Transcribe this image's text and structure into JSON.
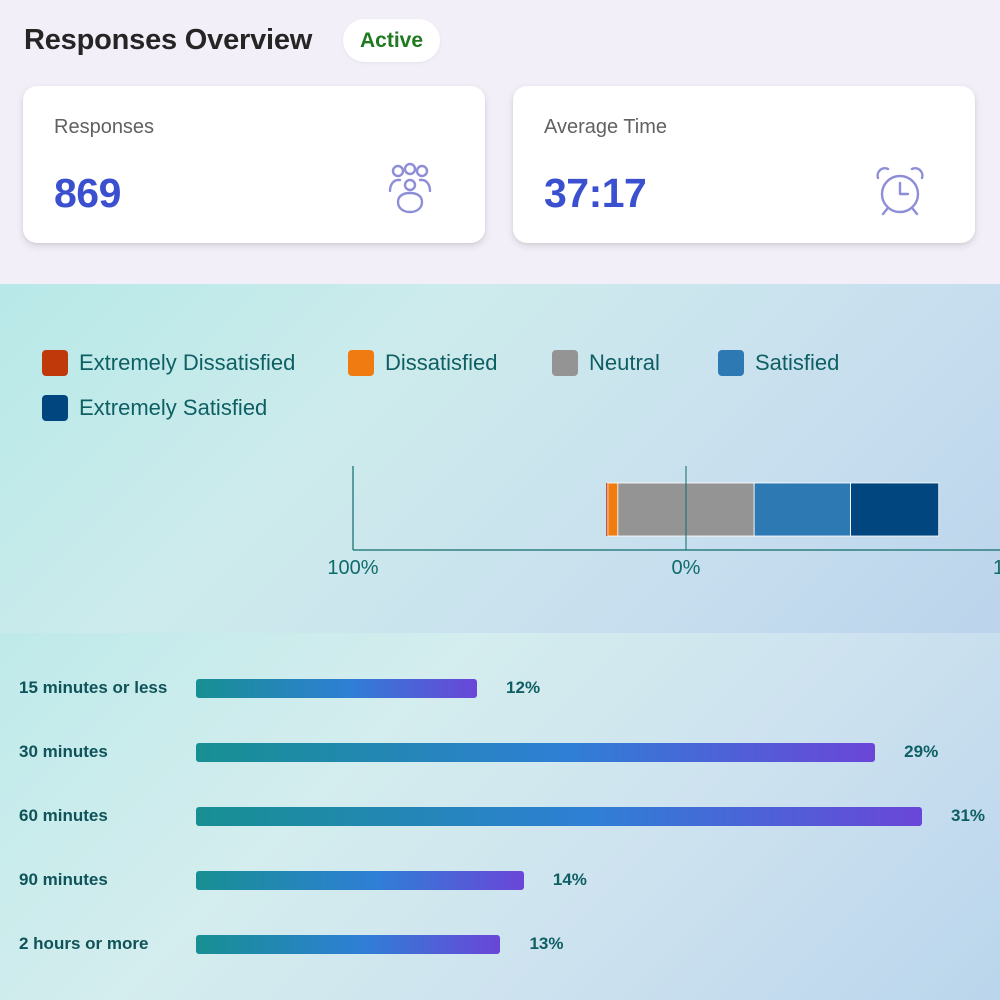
{
  "header": {
    "title": "Responses Overview",
    "status": "Active"
  },
  "cards": [
    {
      "label": "Responses",
      "value": "869",
      "icon": "people-group-icon"
    },
    {
      "label": "Average Time",
      "value": "37:17",
      "icon": "alarm-clock-icon"
    }
  ],
  "colors": {
    "accent": "#3a50cf",
    "status_green": "#1f7a1f",
    "extremely_dissatisfied": "#c0390b",
    "dissatisfied": "#f07b10",
    "neutral": "#949494",
    "satisfied": "#2d79b3",
    "extremely_satisfied": "#01467f"
  },
  "chart_data": [
    {
      "type": "bar",
      "orientation": "horizontal",
      "stacked": "diverging",
      "legend": {
        "placement": "top-left",
        "entries": [
          "Extremely Dissatisfied",
          "Dissatisfied",
          "Neutral",
          "Satisfied",
          "Extremely Satisfied"
        ]
      },
      "series": [
        {
          "name": "Extremely Dissatisfied",
          "value": 0.5
        },
        {
          "name": "Dissatisfied",
          "value": 3
        },
        {
          "name": "Neutral",
          "value": 41
        },
        {
          "name": "Satisfied",
          "value": 29
        },
        {
          "name": "Extremely Satisfied",
          "value": 26.5
        }
      ],
      "x_ticks": [
        "100%",
        "0%",
        "1"
      ],
      "xlim": [
        -100,
        100
      ]
    },
    {
      "type": "bar",
      "orientation": "horizontal",
      "categories": [
        "15 minutes or less",
        "30 minutes",
        "60 minutes",
        "90 minutes",
        "2 hours or more"
      ],
      "values": [
        12,
        29,
        31,
        14,
        13
      ],
      "value_labels": [
        "12%",
        "29%",
        "31%",
        "14%",
        "13%"
      ],
      "max": 31
    }
  ]
}
